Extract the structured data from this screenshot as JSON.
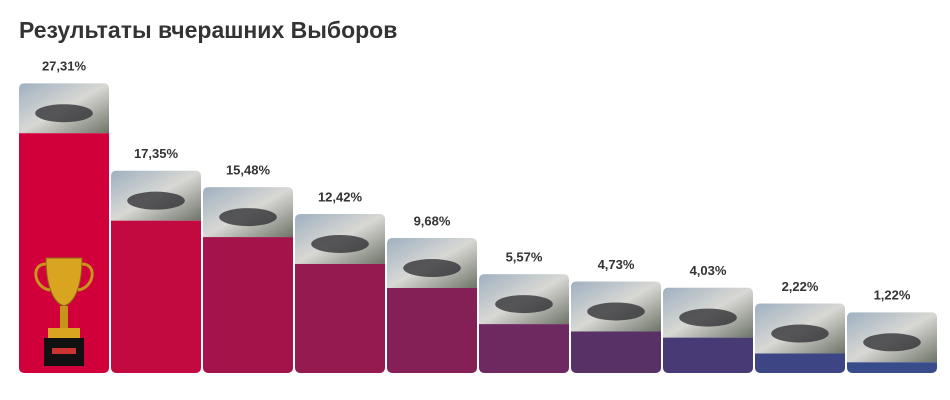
{
  "chart_data": {
    "type": "bar",
    "title": "Результаты вчерашних Выборов",
    "values": [
      27.31,
      17.35,
      15.48,
      12.42,
      9.68,
      5.57,
      4.73,
      4.03,
      2.22,
      1.22
    ],
    "value_labels": [
      "27,31%",
      "17,35%",
      "15,48%",
      "12,42%",
      "9,68%",
      "5,57%",
      "4,73%",
      "4,03%",
      "2,22%",
      "1,22%"
    ],
    "colors": [
      "#d1003b",
      "#c20a40",
      "#a3154a",
      "#951a50",
      "#852056",
      "#6e2a60",
      "#583266",
      "#473a75",
      "#3e4585",
      "#384c8c"
    ]
  }
}
